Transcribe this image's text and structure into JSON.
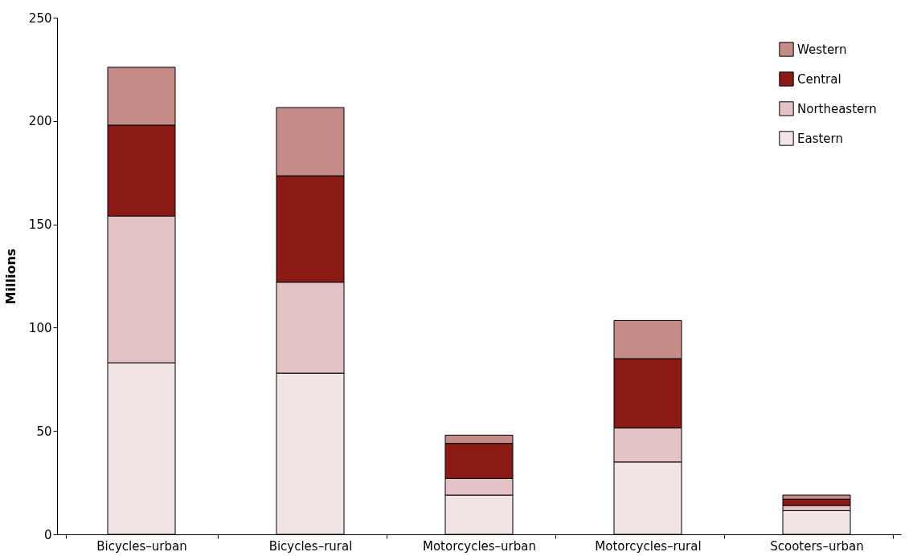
{
  "chart_data": {
    "type": "bar",
    "ylabel": "Millions",
    "stacked": true,
    "legend": "top right",
    "categories": [
      "Bicycles–urban",
      "Bicycles–rural",
      "Motorcycles–urban",
      "Motorcycles–rural",
      "Scooters–urban"
    ],
    "series": [
      {
        "name": "Eastern",
        "color": "#f3e5e5",
        "values": [
          83,
          78,
          19,
          35,
          11.5
        ]
      },
      {
        "name": "Northeastern",
        "color": "#e3c3c5",
        "values": [
          71,
          44,
          8,
          16.5,
          2.5
        ]
      },
      {
        "name": "Central",
        "color": "#8b1a14",
        "values": [
          44,
          51.5,
          17,
          33.5,
          3
        ]
      },
      {
        "name": "Western",
        "color": "#c48b87",
        "values": [
          28,
          33,
          4,
          18.5,
          2
        ]
      }
    ],
    "ylim": [
      0,
      250
    ],
    "yticks": [
      0,
      50,
      100,
      150,
      200,
      250
    ]
  }
}
